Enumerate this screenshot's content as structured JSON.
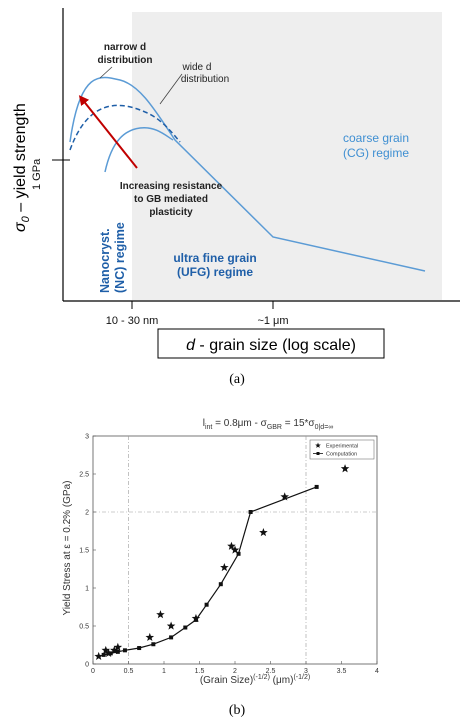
{
  "chart_data": [
    {
      "type": "line",
      "ylabel_symbol": "σ",
      "ylabel_sub": "0",
      "ylabel_text": " – yield strength",
      "ytick": "1 GPa",
      "xlabel_symbol": "d",
      "xlabel_text": " - grain size (log scale)",
      "xticks": [
        "10 - 30 nm",
        "~1 μm"
      ],
      "caption": "(a)",
      "annotations": {
        "narrow_1": "narrow d",
        "narrow_2": "distribution",
        "wide_1": "wide d",
        "wide_2": "distribution",
        "resist_1": "Increasing resistance",
        "resist_2": "to GB mediated",
        "resist_3": "plasticity",
        "nc_1": "Nanocryst.",
        "nc_2": "(NC) regime",
        "ufg_1": "ultra fine  grain",
        "ufg_2": "(UFG) regime",
        "cg_1": "coarse grain",
        "cg_2": "(CG) regime"
      },
      "colors": {
        "curve": "#5b9bd5",
        "dark": "#1f5fa8",
        "arrow": "#c00000",
        "shade": "#eeeeee"
      }
    },
    {
      "type": "scatter",
      "title_parts": {
        "l": "l",
        "l_sub": "int",
        "a": " = 0.8μm - σ",
        "a_sub": "GBR",
        "b": " = 15*σ",
        "b_sub1": "0",
        "b_sub2": "|d=∞"
      },
      "ylabel": "Yield Stress at ε = 0.2% (GPa)",
      "xlabel": "(Grain Size)",
      "xlabel_sup1": "(-1/2)",
      "xlabel_mid": " (μm)",
      "xlabel_sup2": "(-1/2)",
      "xlim": [
        0,
        4
      ],
      "ylim": [
        0,
        3
      ],
      "xticks": [
        "0",
        "0.5",
        "1",
        "1.5",
        "2",
        "2.5",
        "3",
        "3.5",
        "4"
      ],
      "yticks": [
        "0",
        "0.5",
        "1",
        "1.5",
        "2",
        "2.5",
        "3"
      ],
      "legend": {
        "position": "top-right",
        "experimental": "Experimental",
        "computation": "Computation"
      },
      "caption": "(b)",
      "series": [
        {
          "name": "Experimental",
          "marker": "star",
          "points": [
            [
              0.08,
              0.1
            ],
            [
              0.18,
              0.18
            ],
            [
              0.22,
              0.14
            ],
            [
              0.3,
              0.18
            ],
            [
              0.35,
              0.22
            ],
            [
              0.8,
              0.35
            ],
            [
              0.95,
              0.65
            ],
            [
              1.1,
              0.5
            ],
            [
              1.45,
              0.6
            ],
            [
              1.85,
              1.27
            ],
            [
              1.95,
              1.55
            ],
            [
              2.0,
              1.5
            ],
            [
              2.4,
              1.73
            ],
            [
              2.7,
              2.2
            ],
            [
              3.55,
              2.57
            ]
          ]
        },
        {
          "name": "Computation",
          "marker": "square",
          "points": [
            [
              0.15,
              0.12
            ],
            [
              0.25,
              0.14
            ],
            [
              0.35,
              0.16
            ],
            [
              0.45,
              0.18
            ],
            [
              0.65,
              0.21
            ],
            [
              0.85,
              0.26
            ],
            [
              1.1,
              0.35
            ],
            [
              1.3,
              0.48
            ],
            [
              1.45,
              0.58
            ],
            [
              1.6,
              0.78
            ],
            [
              1.8,
              1.05
            ],
            [
              2.05,
              1.45
            ],
            [
              2.22,
              2.0
            ],
            [
              3.15,
              2.33
            ]
          ]
        }
      ]
    }
  ]
}
